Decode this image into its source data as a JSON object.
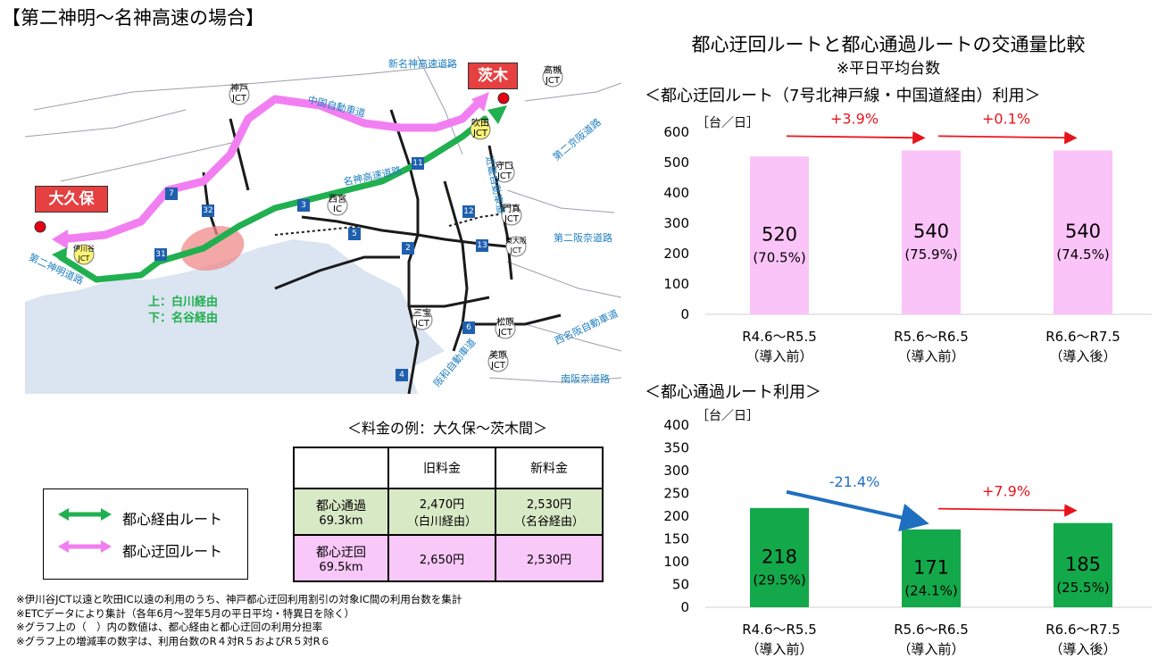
{
  "page": {
    "title": "【第二神明～名神高速の場合】",
    "right_title": "都心迂回ルートと都心通過ルートの交通量比較",
    "right_subtitle": "※平日平均台数"
  },
  "map": {
    "labels": {
      "okubo": "大久保",
      "ibaraki": "茨木",
      "shinmeishin": "新名神高速道路",
      "chugoku": "中国自動車道",
      "meishin": "名神高速道路",
      "dainimeishin": "第二神明道路",
      "kinki": "近畿自動車道",
      "daini_keihan": "第二京阪道路",
      "daini_hanna": "第二阪奈道路",
      "nishimeihan": "西名阪自動車道",
      "hanwa": "阪和自動車道",
      "minamihanna": "南阪奈道路",
      "route_note_1": "上：白川経由",
      "route_note_2": "下：名谷経由"
    },
    "jcts": [
      "神戸\nJCT",
      "吹田\nJCT",
      "高槻\nJCT",
      "守口\nJCT",
      "門真\nJCT",
      "東大阪\nJCT",
      "松原\nJCT",
      "美原\nJCT",
      "三宝\nJCT",
      "西宮\nIC",
      "伊川谷\nJCT"
    ],
    "route_numbers": [
      "11",
      "7",
      "32",
      "3",
      "5",
      "2",
      "12",
      "13",
      "31",
      "6",
      "4"
    ]
  },
  "legend": {
    "green": "都心経由ルート",
    "pink": "都心迂回ルート"
  },
  "fare": {
    "title": "＜料金の例：大久保～茨木間＞",
    "headers": [
      "",
      "旧料金",
      "新料金"
    ],
    "rows": [
      {
        "name": "都心通過",
        "dist": "69.3km",
        "old": "2,470円",
        "old_sub": "（白川経由）",
        "new": "2,530円",
        "new_sub": "（名谷経由）"
      },
      {
        "name": "都心迂回",
        "dist": "69.5km",
        "old": "2,650円",
        "old_sub": "",
        "new": "2,530円",
        "new_sub": ""
      }
    ]
  },
  "notes": [
    "※伊川谷JCT以遠と吹田IC以遠の利用のうち、神戸都心迂回利用割引の対象IC間の利用台数を集計",
    "※ETCデータにより集計（各年6月～翌年5月の平日平均・特異日を除く）",
    "※グラフ上の（　）内の数値は、都心経由と都心迂回の利用分担率",
    "※グラフ上の増減率の数字は、利用台数のR４対R５およびR５対R６"
  ],
  "chart_data": [
    {
      "type": "bar",
      "title": "＜都心迂回ルート（7号北神戸線・中国道経由）利用＞",
      "ylabel": "［台／日］",
      "ylim": [
        0,
        600
      ],
      "yticks": [
        0,
        100,
        200,
        300,
        400,
        500,
        600
      ],
      "categories": [
        [
          "R4.6～R5.5",
          "（導入前）"
        ],
        [
          "R5.6～R6.5",
          "（導入前）"
        ],
        [
          "R6.6～R7.5",
          "（導入後）"
        ]
      ],
      "values": [
        520,
        540,
        540
      ],
      "shares": [
        "(70.5%)",
        "(75.9%)",
        "(74.5%)"
      ],
      "changes": [
        "+3.9%",
        "+0.1%"
      ],
      "change_colors": [
        "#e8141c",
        "#e8141c"
      ],
      "bar_color": "#fbc4f8"
    },
    {
      "type": "bar",
      "title": "＜都心通過ルート利用＞",
      "ylabel": "［台／日］",
      "ylim": [
        0,
        400
      ],
      "yticks": [
        0,
        50,
        100,
        150,
        200,
        250,
        300,
        350,
        400
      ],
      "categories": [
        [
          "R4.6～R5.5",
          "（導入前）"
        ],
        [
          "R5.6～R6.5",
          "（導入前）"
        ],
        [
          "R6.6～R7.5",
          "（導入後）"
        ]
      ],
      "values": [
        218,
        171,
        185
      ],
      "shares": [
        "(29.5%)",
        "(24.1%)",
        "(25.5%)"
      ],
      "changes": [
        "-21.4%",
        "+7.9%"
      ],
      "change_colors": [
        "#1f6fc0",
        "#e8141c"
      ],
      "bar_color": "#13a94a"
    }
  ]
}
